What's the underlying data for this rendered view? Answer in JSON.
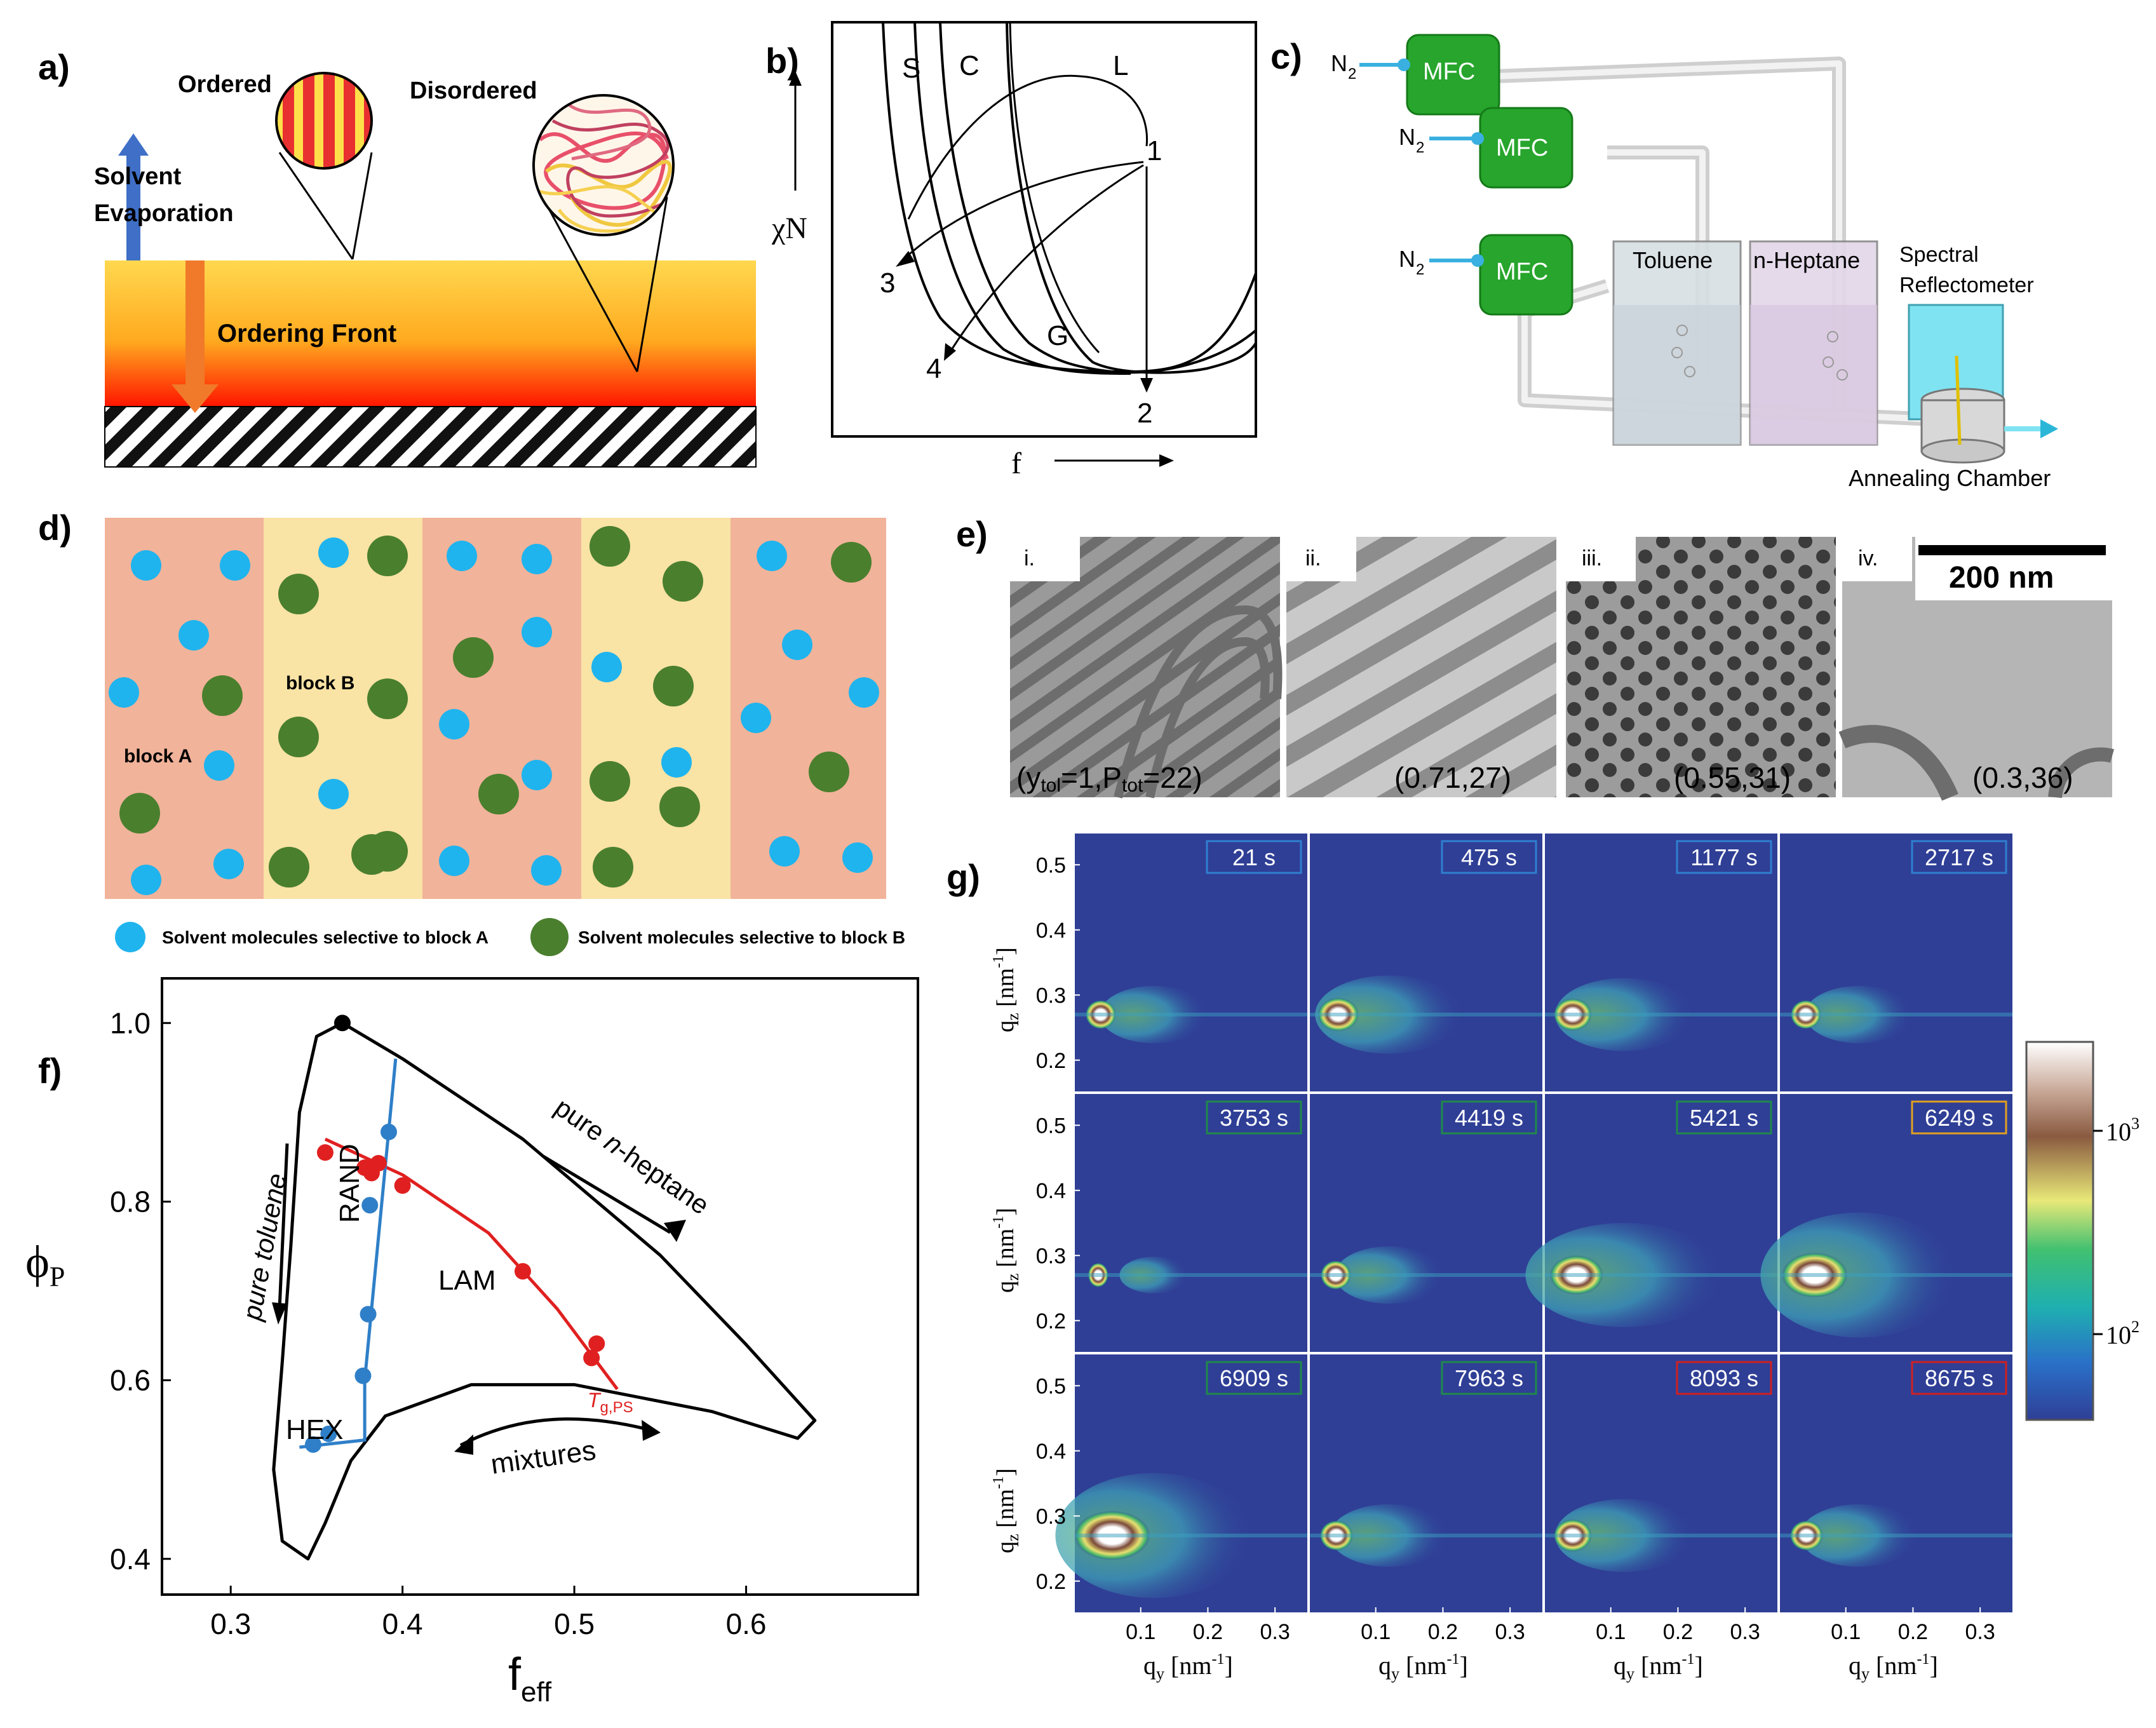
{
  "panels": {
    "a": {
      "label": "a)",
      "ordered": "Ordered",
      "disordered": "Disordered",
      "solvent_line1": "Solvent",
      "solvent_line2": "Evaporation",
      "ordering_front": "Ordering Front",
      "colors": {
        "film_top": "#ffd24a",
        "film_bottom": "#ff1a00",
        "evap_arrow": "#3f6fc6",
        "front_arrow": "#f07a2a"
      }
    },
    "b": {
      "label": "b)",
      "regions": [
        "S",
        "C",
        "L",
        "G"
      ],
      "points": [
        "1",
        "2",
        "3",
        "4"
      ],
      "ylabel": "χN",
      "xlabel": "f"
    },
    "c": {
      "label": "c)",
      "n2": "N",
      "n2_sub": "2",
      "mfc": "MFC",
      "toluene": "Toluene",
      "heptane": "n-Heptane",
      "reflectometer_line1": "Spectral",
      "reflectometer_line2": "Reflectometer",
      "chamber": "Annealing Chamber",
      "colors": {
        "mfc": "#27a52c",
        "pipe": "#d7d7d7",
        "toluene_tank": "#dfe6ea",
        "heptane_tank": "#e7dcec",
        "reflectometer": "#7fe3f2"
      }
    },
    "d": {
      "label": "d)",
      "block_a": "block A",
      "block_b": "block B",
      "legend_a": "Solvent molecules selective to block A",
      "legend_b": "Solvent molecules selective to block B",
      "colors": {
        "block_a": "#f1b39a",
        "block_b": "#f9e3a5",
        "solvent_a": "#1fb4ee",
        "solvent_b": "#4a7f2e"
      }
    },
    "e": {
      "label": "e)",
      "images": [
        {
          "roman": "i.",
          "caption": "(y",
          "sub1": "tol",
          "mid": "=1,P",
          "sub2": "tot",
          "end": "=22)"
        },
        {
          "roman": "ii.",
          "caption": "(0.71,27)"
        },
        {
          "roman": "iii.",
          "caption": "(0.55,31)"
        },
        {
          "roman": "iv.",
          "caption": "(0.3,36)"
        }
      ],
      "scale_bar": "200 nm"
    },
    "f": {
      "label": "f)",
      "ylabel": "ϕ",
      "ylabel_sub": "P",
      "xlabel": "f",
      "xlabel_sub": "eff",
      "regions": {
        "rand": "RAND",
        "lam": "LAM",
        "hex": "HEX"
      },
      "arrows": {
        "toluene": "pure toluene",
        "heptane_pre": "pure ",
        "heptane_it": "n",
        "heptane_post": "-heptane",
        "mixtures": "mixtures"
      },
      "tg": "T",
      "tg_sub": "g,PS",
      "colors": {
        "tg_line": "#e02020",
        "boundary": "#2f7fc8"
      }
    },
    "g": {
      "label": "g)",
      "times": [
        "21 s",
        "475 s",
        "1177 s",
        "2717 s",
        "3753 s",
        "4419 s",
        "5421 s",
        "6249 s",
        "6909 s",
        "7963 s",
        "8093 s",
        "8675 s"
      ],
      "frame_colors": [
        "#2f7fd0",
        "#2f7fd0",
        "#2f7fd0",
        "#2f7fd0",
        "#1f8a4a",
        "#1f8a4a",
        "#1f8a4a",
        "#e0a020",
        "#1f8a4a",
        "#1f8a4a",
        "#d02020",
        "#d02020"
      ],
      "ylabel": "q",
      "ylabel_sub": "z",
      "ylabel_unit": " [nm",
      "ylabel_exp": "-1",
      "ylabel_end": "]",
      "xlabel": "q",
      "xlabel_sub": "y",
      "xlabel_unit": " [nm",
      "xlabel_exp": "-1",
      "xlabel_end": "]",
      "colorbar_hi": "10",
      "colorbar_hi_exp": "3",
      "colorbar_lo": "10",
      "colorbar_lo_exp": "2",
      "colors": {
        "background": "#2f3f96"
      }
    }
  },
  "chart_data": [
    {
      "panel": "f",
      "type": "scatter",
      "title": "",
      "xlabel": "f_eff",
      "ylabel": "ϕ_P",
      "xlim": [
        0.26,
        0.7
      ],
      "ylim": [
        0.36,
        1.05
      ],
      "xticks": [
        "0.3",
        "0.4",
        "0.5",
        "0.6"
      ],
      "yticks": [
        "0.4",
        "0.6",
        "0.8",
        "1.0"
      ],
      "series": [
        {
          "name": "Tg,PS",
          "x": [
            0.355,
            0.378,
            0.382,
            0.386,
            0.4,
            0.47,
            0.51,
            0.513
          ],
          "y": [
            0.855,
            0.838,
            0.832,
            0.843,
            0.818,
            0.722,
            0.625,
            0.641
          ]
        },
        {
          "name": "phase boundary",
          "x": [
            0.348,
            0.357,
            0.377,
            0.38,
            0.381,
            0.392
          ],
          "y": [
            0.528,
            0.54,
            0.605,
            0.674,
            0.796,
            0.878
          ]
        },
        {
          "name": "start",
          "x": [
            0.365
          ],
          "y": [
            1.0
          ]
        }
      ]
    },
    {
      "panel": "g",
      "type": "heatmap",
      "xlabel": "q_y [nm^-1]",
      "ylabel": "q_z [nm^-1]",
      "xlim": [
        0.0,
        0.35
      ],
      "ylim": [
        0.15,
        0.55
      ],
      "xticks": [
        "0.1",
        "0.2",
        "0.3"
      ],
      "yticks": [
        "0.2",
        "0.3",
        "0.4",
        "0.5"
      ],
      "colorbar": {
        "scale": "log",
        "ticks": [
          "10^2",
          "10^3"
        ]
      }
    }
  ]
}
